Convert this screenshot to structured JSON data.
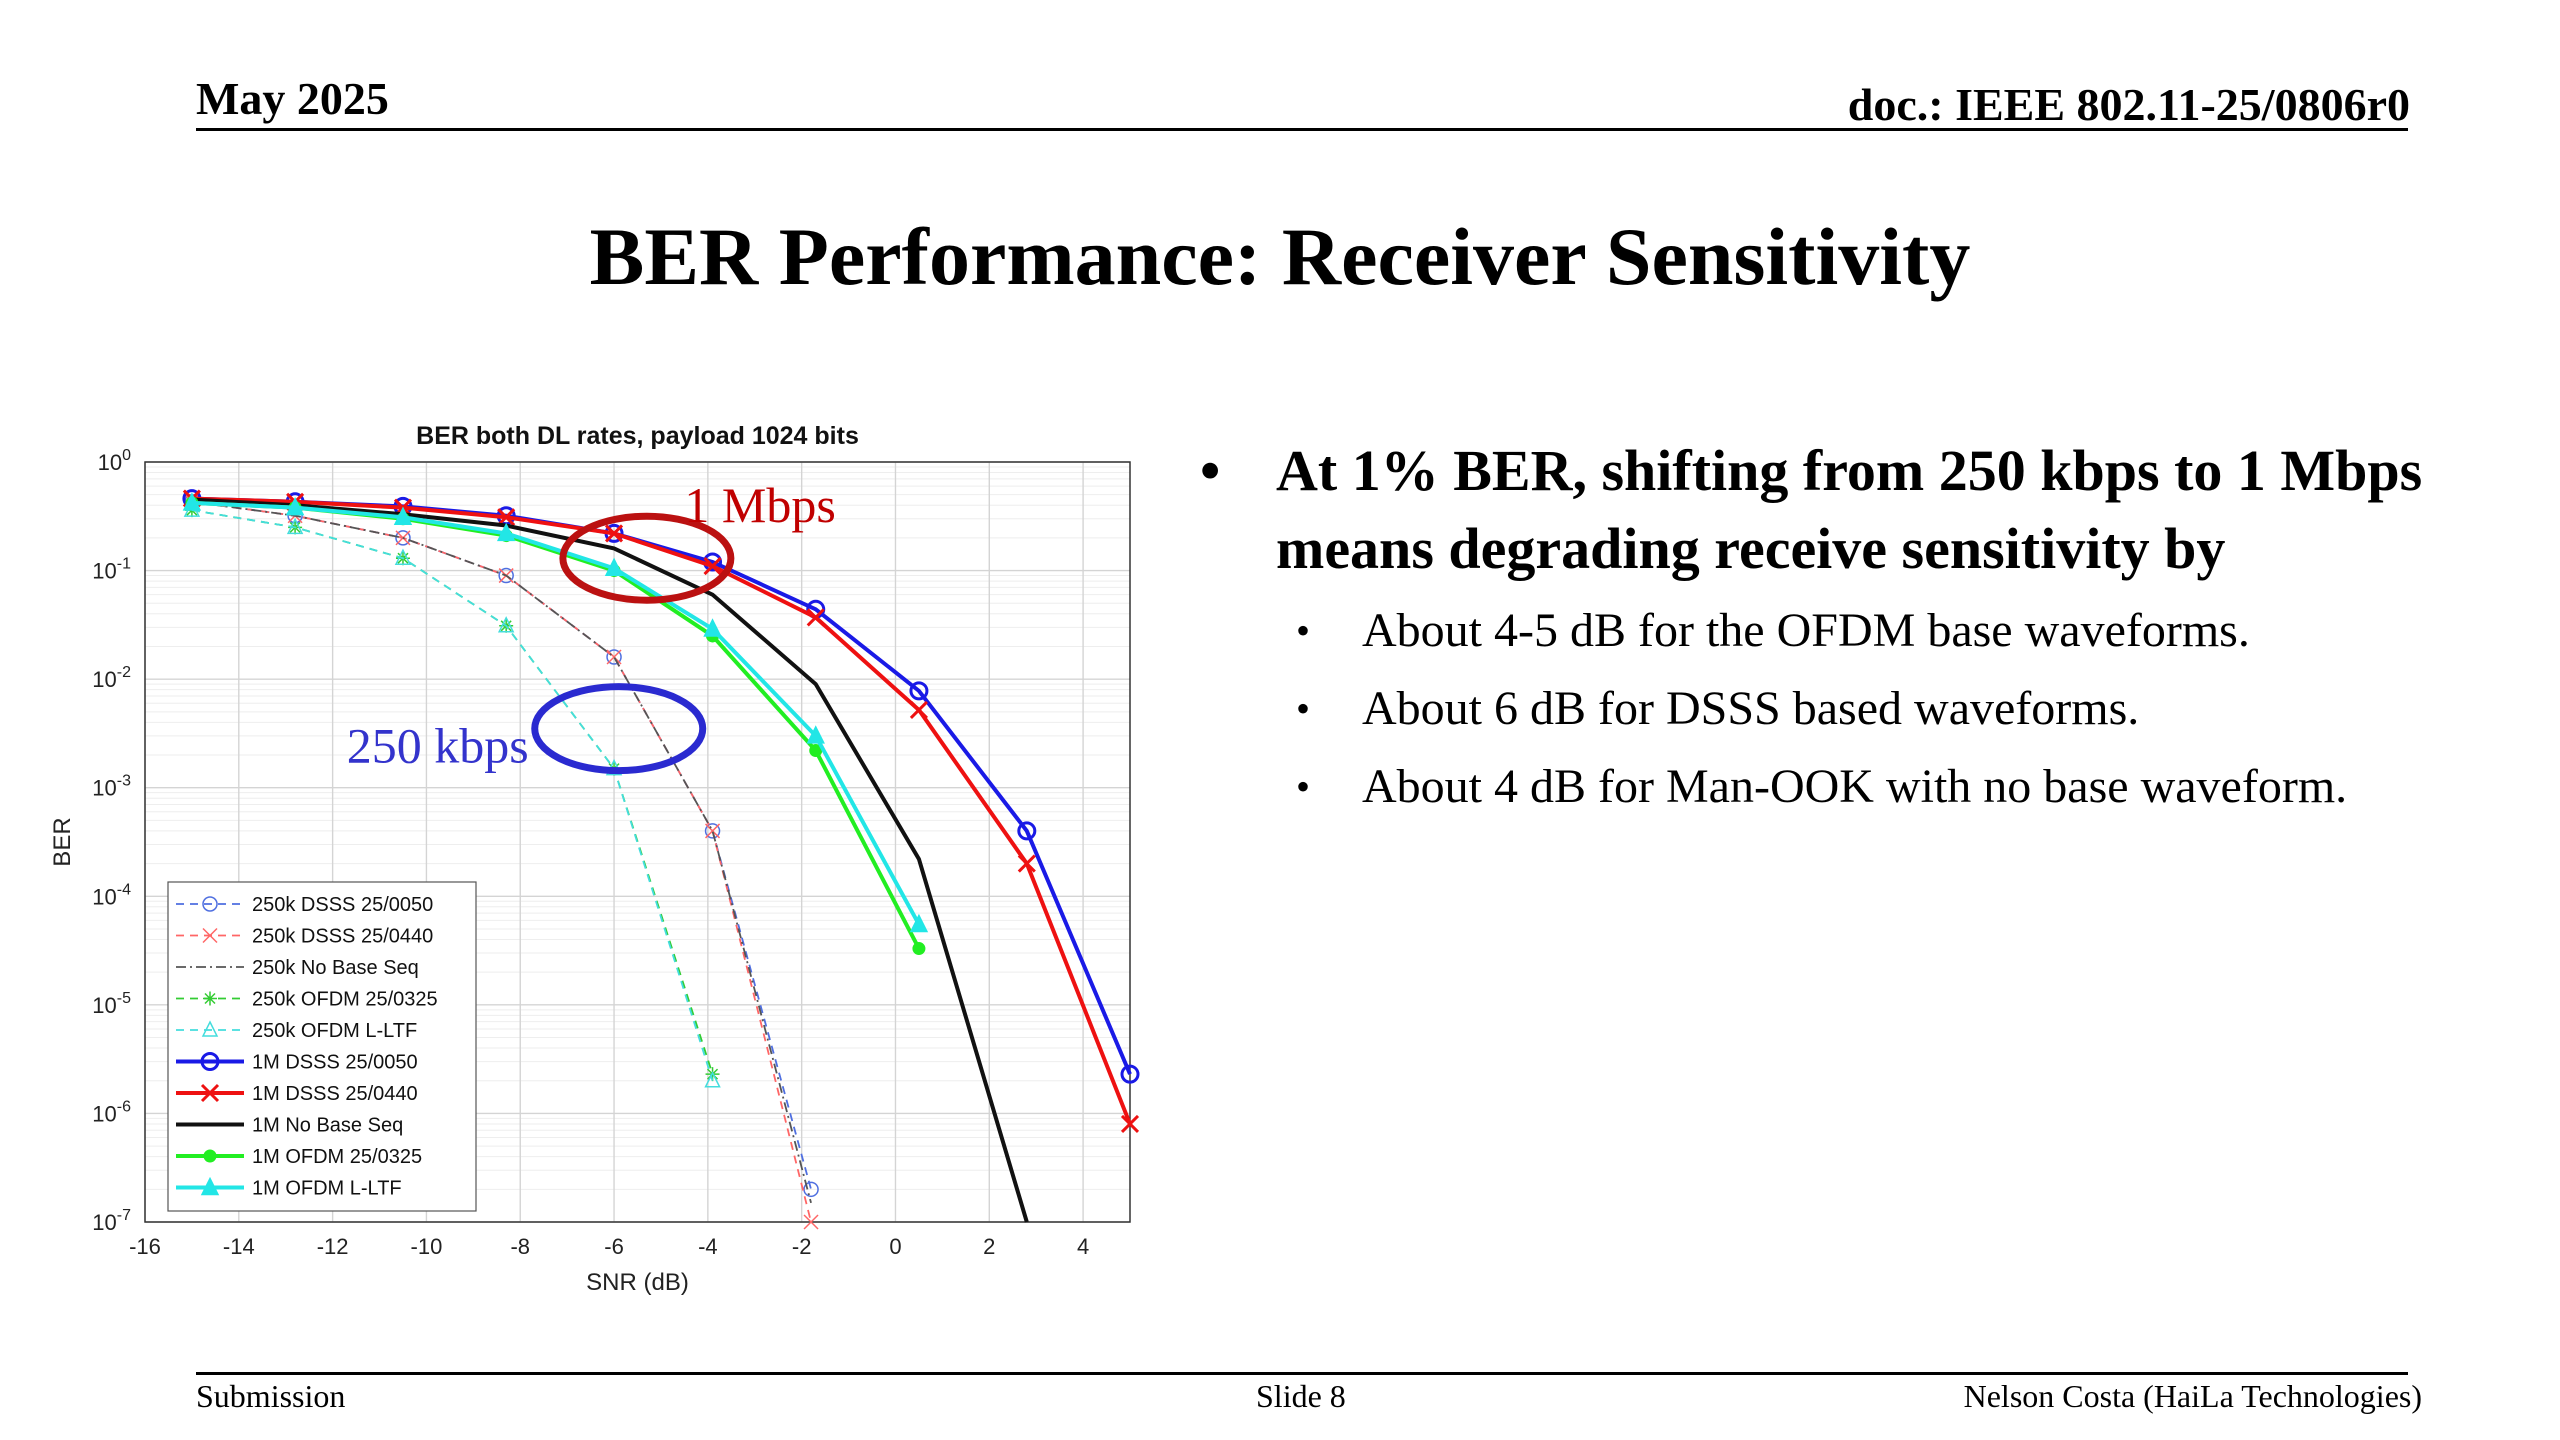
{
  "header": {
    "date": "May 2025",
    "doc_id": "doc.: IEEE 802.11-25/0806r0"
  },
  "title": "BER Performance: Receiver Sensitivity",
  "bullets": {
    "main": "At 1% BER, shifting from 250 kbps to 1 Mbps means degrading receive sensitivity by",
    "sub": [
      "About 4-5 dB for the OFDM base waveforms.",
      "About 6 dB for DSSS based waveforms.",
      "About 4 dB for Man-OOK with no base waveform."
    ]
  },
  "footer": {
    "left": "Submission",
    "center": "Slide 8",
    "right": "Nelson Costa (HaiLa Technologies)"
  },
  "chart_data": {
    "type": "line",
    "title": "BER both DL rates, payload 1024 bits",
    "xlabel": "SNR (dB)",
    "ylabel": "BER",
    "xlim": [
      -16,
      5
    ],
    "ylim_log10": [
      -7,
      0
    ],
    "y_scale": "log",
    "grid": true,
    "legend_position": "bottom-left",
    "x_ticks": [
      "-16",
      "-14",
      "-12",
      "-10",
      "-8",
      "-6",
      "-4",
      "-2",
      "0",
      "2",
      "4"
    ],
    "y_tick_exponents": [
      "0",
      "-1",
      "-2",
      "-3",
      "-4",
      "-5",
      "-6",
      "-7"
    ],
    "annotations": [
      {
        "text": "1 Mbps",
        "color": "#c00000"
      },
      {
        "text": "250 kbps",
        "color": "#3333cc"
      }
    ],
    "series": [
      {
        "name": "250k DSSS 25/0050",
        "color": "#4f6fe0",
        "dash": "8,6",
        "marker": "circle",
        "x": [
          -15,
          -12.8,
          -10.5,
          -8.3,
          -6,
          -3.9,
          -1.8
        ],
        "y": [
          0.43,
          0.32,
          0.2,
          0.09,
          0.016,
          0.0004,
          2e-07
        ]
      },
      {
        "name": "250k DSSS 25/0440",
        "color": "#ff6666",
        "dash": "8,6",
        "marker": "x",
        "x": [
          -15,
          -12.8,
          -10.5,
          -8.3,
          -6,
          -3.9,
          -1.8
        ],
        "y": [
          0.43,
          0.32,
          0.2,
          0.09,
          0.016,
          0.0004,
          1e-07
        ]
      },
      {
        "name": "250k No Base Seq",
        "color": "#555555",
        "dash": "10,4,2,4",
        "marker": "none",
        "x": [
          -15,
          -12.8,
          -10.5,
          -8.3,
          -6,
          -3.9,
          -1.8
        ],
        "y": [
          0.43,
          0.32,
          0.2,
          0.09,
          0.016,
          0.0004,
          1.5e-07
        ]
      },
      {
        "name": "250k OFDM 25/0325",
        "color": "#33cc33",
        "dash": "8,6",
        "marker": "star",
        "x": [
          -15,
          -12.8,
          -10.5,
          -8.3,
          -6,
          -3.9
        ],
        "y": [
          0.36,
          0.25,
          0.13,
          0.031,
          0.0015,
          2.3e-06
        ]
      },
      {
        "name": "250k OFDM L-LTF",
        "color": "#44dddd",
        "dash": "8,6",
        "marker": "triangle",
        "x": [
          -15,
          -12.8,
          -10.5,
          -8.3,
          -6,
          -3.9
        ],
        "y": [
          0.36,
          0.25,
          0.13,
          0.031,
          0.0015,
          2e-06
        ]
      },
      {
        "name": "1M DSSS 25/0050",
        "color": "#1a1ae6",
        "dash": "",
        "marker": "circle",
        "x": [
          -15,
          -12.8,
          -10.5,
          -8.3,
          -6,
          -3.9,
          -1.7,
          0.5,
          2.8,
          5
        ],
        "y": [
          0.46,
          0.43,
          0.39,
          0.32,
          0.22,
          0.12,
          0.044,
          0.0078,
          0.0004,
          2.3e-06
        ]
      },
      {
        "name": "1M DSSS 25/0440",
        "color": "#ee1111",
        "dash": "",
        "marker": "x",
        "x": [
          -15,
          -12.8,
          -10.5,
          -8.3,
          -6,
          -3.9,
          -1.7,
          0.5,
          2.8,
          5
        ],
        "y": [
          0.46,
          0.43,
          0.38,
          0.31,
          0.22,
          0.11,
          0.037,
          0.0052,
          0.0002,
          8e-07
        ]
      },
      {
        "name": "1M No Base Seq",
        "color": "#111111",
        "dash": "",
        "marker": "none",
        "x": [
          -15,
          -12.8,
          -10.5,
          -8.3,
          -6,
          -3.9,
          -1.7,
          0.5,
          2.8
        ],
        "y": [
          0.45,
          0.4,
          0.33,
          0.26,
          0.16,
          0.06,
          0.009,
          0.00022,
          1e-07
        ]
      },
      {
        "name": "1M OFDM 25/0325",
        "color": "#22ee22",
        "dash": "",
        "marker": "dot",
        "x": [
          -15,
          -12.8,
          -10.5,
          -8.3,
          -6,
          -3.9,
          -1.7,
          0.5
        ],
        "y": [
          0.42,
          0.38,
          0.3,
          0.21,
          0.1,
          0.025,
          0.0022,
          3.3e-05
        ]
      },
      {
        "name": "1M OFDM L-LTF",
        "color": "#22e6e6",
        "dash": "",
        "marker": "triangle",
        "x": [
          -15,
          -12.8,
          -10.5,
          -8.3,
          -6,
          -3.9,
          -1.7,
          0.5
        ],
        "y": [
          0.42,
          0.38,
          0.31,
          0.22,
          0.105,
          0.029,
          0.003,
          5.5e-05
        ]
      }
    ]
  }
}
